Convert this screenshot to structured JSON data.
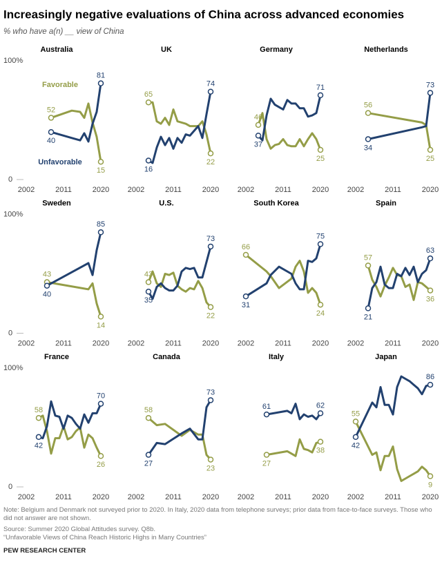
{
  "header": {
    "title": "Increasingly negative evaluations of China across advanced economies",
    "subtitle": "% who have a(n) __ view of China"
  },
  "chart_data": [
    {
      "type": "line",
      "title": "Australia",
      "x": [
        2008,
        2013,
        2015,
        2016,
        2017,
        2018,
        2019,
        2020
      ],
      "xlim": [
        2002,
        2020
      ],
      "xticks": [
        2002,
        2011,
        2020
      ],
      "ylim": [
        0,
        100
      ],
      "yticks": [
        {
          "value": 100,
          "label": "100%"
        },
        0
      ],
      "series": [
        {
          "name": "Favorable",
          "color": "#949d47",
          "values": [
            52,
            58,
            57,
            52,
            64,
            48,
            36,
            15
          ]
        },
        {
          "name": "Unfavorable",
          "color": "#22416f",
          "values": [
            40,
            35,
            33,
            39,
            32,
            47,
            57,
            81
          ]
        }
      ]
    },
    {
      "type": "line",
      "title": "UK",
      "x": [
        2005,
        2006,
        2007,
        2008,
        2009,
        2010,
        2011,
        2012,
        2013,
        2014,
        2015,
        2017,
        2018,
        2019,
        2020
      ],
      "xlim": [
        2002,
        2020
      ],
      "xticks": [
        2002,
        2011,
        2020
      ],
      "ylim": [
        0,
        100
      ],
      "series": [
        {
          "color": "#949d47",
          "values": [
            65,
            65,
            49,
            47,
            52,
            46,
            59,
            49,
            48,
            47,
            45,
            45,
            49,
            38,
            22
          ]
        },
        {
          "color": "#22416f",
          "values": [
            16,
            14,
            27,
            36,
            29,
            35,
            26,
            35,
            31,
            38,
            37,
            45,
            35,
            55,
            74
          ]
        }
      ]
    },
    {
      "type": "line",
      "title": "Germany",
      "x": [
        2005,
        2006,
        2007,
        2008,
        2009,
        2010,
        2011,
        2012,
        2013,
        2014,
        2015,
        2016,
        2017,
        2018,
        2019,
        2020
      ],
      "xlim": [
        2002,
        2020
      ],
      "xticks": [
        2002,
        2011,
        2020
      ],
      "ylim": [
        0,
        100
      ],
      "series": [
        {
          "color": "#949d47",
          "values": [
            46,
            56,
            34,
            26,
            29,
            30,
            34,
            29,
            28,
            28,
            34,
            28,
            34,
            39,
            34,
            25
          ]
        },
        {
          "color": "#22416f",
          "values": [
            37,
            33,
            54,
            68,
            63,
            61,
            59,
            67,
            64,
            64,
            60,
            60,
            53,
            54,
            56,
            71
          ]
        }
      ]
    },
    {
      "type": "line",
      "title": "Netherlands",
      "x": [
        2005,
        2018,
        2019,
        2020
      ],
      "xlim": [
        2002,
        2020
      ],
      "xticks": [
        2002,
        2011,
        2020
      ],
      "ylim": [
        0,
        100
      ],
      "series": [
        {
          "color": "#949d47",
          "values": [
            56,
            48,
            46,
            25
          ]
        },
        {
          "color": "#22416f",
          "values": [
            34,
            44,
            45,
            73
          ]
        }
      ]
    },
    {
      "type": "line",
      "title": "Sweden",
      "x": [
        2007,
        2017,
        2018,
        2019,
        2020
      ],
      "xlim": [
        2002,
        2020
      ],
      "xticks": [
        2002,
        2011,
        2020
      ],
      "ylim": [
        0,
        100
      ],
      "yticks": [
        {
          "value": 100,
          "label": "100%"
        },
        0
      ],
      "series": [
        {
          "color": "#949d47",
          "values": [
            43,
            37,
            42,
            25,
            14
          ]
        },
        {
          "color": "#22416f",
          "values": [
            40,
            59,
            49,
            70,
            85
          ]
        }
      ]
    },
    {
      "type": "line",
      "title": "U.S.",
      "x": [
        2005,
        2006,
        2007,
        2008,
        2009,
        2010,
        2011,
        2012,
        2013,
        2014,
        2015,
        2016,
        2017,
        2018,
        2019,
        2020
      ],
      "xlim": [
        2002,
        2020
      ],
      "xticks": [
        2002,
        2011,
        2020
      ],
      "ylim": [
        0,
        100
      ],
      "series": [
        {
          "color": "#949d47",
          "values": [
            43,
            52,
            42,
            39,
            50,
            49,
            51,
            40,
            37,
            35,
            38,
            37,
            44,
            38,
            26,
            22
          ]
        },
        {
          "color": "#22416f",
          "values": [
            35,
            29,
            39,
            42,
            38,
            36,
            36,
            40,
            52,
            55,
            54,
            55,
            47,
            47,
            60,
            73
          ]
        }
      ]
    },
    {
      "type": "line",
      "title": "South Korea",
      "x": [
        2002,
        2007,
        2008,
        2010,
        2013,
        2014,
        2015,
        2016,
        2017,
        2018,
        2019,
        2020
      ],
      "xlim": [
        2002,
        2020
      ],
      "xticks": [
        2002,
        2011,
        2020
      ],
      "ylim": [
        0,
        100
      ],
      "series": [
        {
          "color": "#949d47",
          "values": [
            66,
            52,
            48,
            38,
            46,
            56,
            61,
            52,
            34,
            38,
            34,
            24
          ]
        },
        {
          "color": "#22416f",
          "values": [
            31,
            42,
            49,
            56,
            50,
            42,
            37,
            37,
            61,
            60,
            63,
            75
          ]
        }
      ]
    },
    {
      "type": "line",
      "title": "Spain",
      "x": [
        2005,
        2006,
        2007,
        2008,
        2009,
        2010,
        2011,
        2012,
        2013,
        2014,
        2015,
        2016,
        2017,
        2018,
        2019,
        2020
      ],
      "xlim": [
        2002,
        2020
      ],
      "xticks": [
        2002,
        2011,
        2020
      ],
      "ylim": [
        0,
        100
      ],
      "series": [
        {
          "color": "#949d47",
          "values": [
            57,
            45,
            39,
            31,
            40,
            47,
            55,
            49,
            48,
            39,
            41,
            28,
            43,
            42,
            39,
            36
          ]
        },
        {
          "color": "#22416f",
          "values": [
            21,
            38,
            43,
            56,
            41,
            38,
            38,
            50,
            48,
            55,
            49,
            56,
            43,
            50,
            53,
            63
          ]
        }
      ]
    },
    {
      "type": "line",
      "title": "France",
      "x": [
        2005,
        2006,
        2007,
        2008,
        2009,
        2010,
        2011,
        2012,
        2013,
        2014,
        2015,
        2016,
        2017,
        2018,
        2019,
        2020
      ],
      "xlim": [
        2002,
        2020
      ],
      "xticks": [
        2002,
        2011,
        2020
      ],
      "ylim": [
        0,
        100
      ],
      "yticks": [
        {
          "value": 100,
          "label": "100%"
        },
        0
      ],
      "series": [
        {
          "color": "#949d47",
          "values": [
            58,
            60,
            47,
            28,
            41,
            41,
            51,
            40,
            42,
            47,
            50,
            33,
            44,
            41,
            33,
            26
          ]
        },
        {
          "color": "#22416f",
          "values": [
            42,
            41,
            51,
            72,
            60,
            59,
            49,
            60,
            58,
            53,
            49,
            61,
            54,
            62,
            62,
            70
          ]
        }
      ]
    },
    {
      "type": "line",
      "title": "Canada",
      "x": [
        2005,
        2007,
        2009,
        2013,
        2015,
        2017,
        2018,
        2019,
        2020
      ],
      "xlim": [
        2002,
        2020
      ],
      "xticks": [
        2002,
        2011,
        2020
      ],
      "ylim": [
        0,
        100
      ],
      "series": [
        {
          "color": "#949d47",
          "values": [
            58,
            52,
            53,
            43,
            48,
            44,
            44,
            27,
            23
          ]
        },
        {
          "color": "#22416f",
          "values": [
            27,
            37,
            36,
            45,
            49,
            40,
            40,
            67,
            73
          ]
        }
      ]
    },
    {
      "type": "line",
      "title": "Italy",
      "x": [
        2007,
        2012,
        2013,
        2014,
        2015,
        2016,
        2017,
        2018,
        2019,
        2020
      ],
      "xlim": [
        2002,
        2020
      ],
      "xticks": [
        2002,
        2011,
        2020
      ],
      "ylim": [
        0,
        100
      ],
      "series": [
        {
          "color": "#949d47",
          "values": [
            27,
            30,
            28,
            26,
            40,
            32,
            31,
            29,
            37,
            38
          ]
        },
        {
          "color": "#22416f",
          "values": [
            61,
            64,
            62,
            70,
            57,
            61,
            59,
            60,
            57,
            62
          ]
        }
      ]
    },
    {
      "type": "line",
      "title": "Japan",
      "x": [
        2002,
        2006,
        2007,
        2008,
        2009,
        2010,
        2011,
        2012,
        2013,
        2014,
        2015,
        2016,
        2017,
        2018,
        2019,
        2020
      ],
      "xlim": [
        2002,
        2020
      ],
      "xticks": [
        2002,
        2011,
        2020
      ],
      "ylim": [
        0,
        100
      ],
      "series": [
        {
          "color": "#949d47",
          "values": [
            55,
            27,
            29,
            14,
            26,
            26,
            34,
            15,
            5,
            7,
            9,
            11,
            13,
            17,
            14,
            9
          ]
        },
        {
          "color": "#22416f",
          "values": [
            42,
            71,
            67,
            84,
            69,
            69,
            61,
            84,
            93,
            91,
            89,
            86,
            83,
            78,
            85,
            86
          ]
        }
      ]
    }
  ],
  "footer": {
    "note": "Note: Belgium and Denmark not surveyed prior to 2020. In Italy, 2020 data from telephone surveys; prior data from face-to-face surveys. Those who did not answer are not shown.",
    "source": "Source: Summer 2020 Global Attitudes survey. Q8b.",
    "report": "“Unfavorable Views of China Reach Historic Highs in Many Countries”",
    "org": "PEW RESEARCH CENTER"
  }
}
